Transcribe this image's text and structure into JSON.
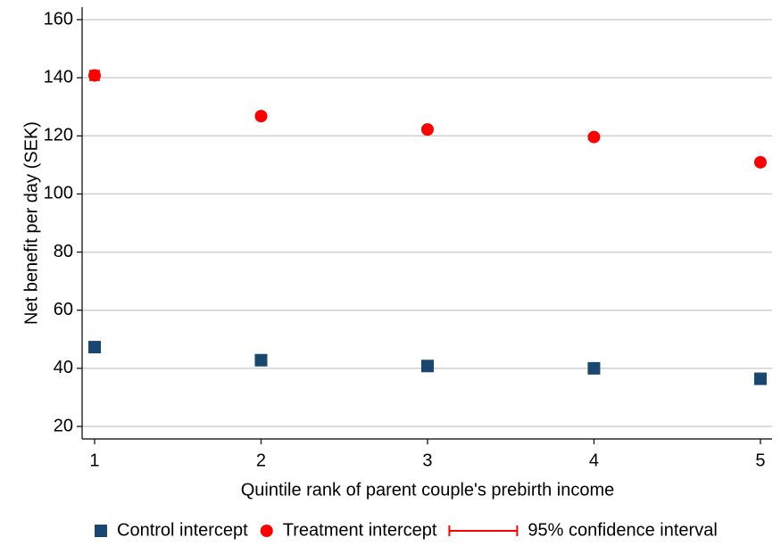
{
  "chart_data": {
    "type": "scatter",
    "xlabel": "Quintile rank of parent couple's prebirth income",
    "ylabel": "Net benefit per day (SEK)",
    "x": [
      1,
      2,
      3,
      4,
      5
    ],
    "xlim": [
      0.925,
      5.07
    ],
    "xticks": [
      1,
      2,
      3,
      4,
      5
    ],
    "ylim": [
      15.7,
      164.3
    ],
    "yticks": [
      20,
      40,
      60,
      80,
      100,
      120,
      140,
      160
    ],
    "grid": true,
    "legend": "bottom",
    "series": [
      {
        "name": "Control intercept",
        "color": "#1a476f",
        "marker": "square",
        "values": [
          47.3,
          42.8,
          40.8,
          40.0,
          36.4
        ]
      },
      {
        "name": "Treatment intercept",
        "color": "#ff0000",
        "marker": "circle",
        "values": [
          140.8,
          126.8,
          122.2,
          119.6,
          110.9
        ],
        "errors": [
          1.6,
          1.0,
          0.9,
          0.9,
          1.0
        ]
      }
    ],
    "error_legend": "95% confidence interval",
    "error_color": "#ff0000"
  }
}
